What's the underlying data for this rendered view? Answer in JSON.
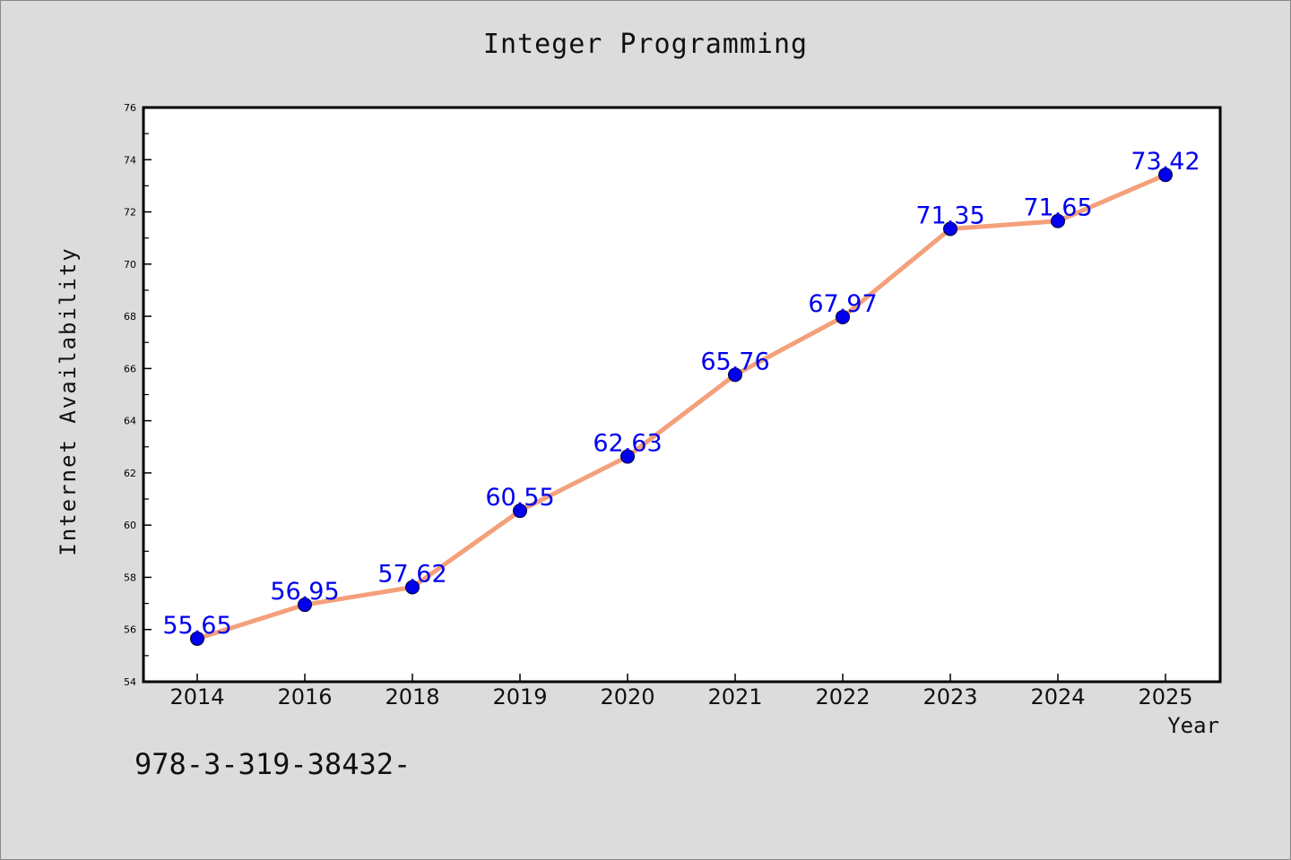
{
  "chart_data": {
    "type": "line",
    "title": "Integer Programming",
    "xlabel": "Year",
    "ylabel": "Internet Availability",
    "categories": [
      "2014",
      "2016",
      "2018",
      "2019",
      "2020",
      "2021",
      "2022",
      "2023",
      "2024",
      "2025"
    ],
    "values": [
      55.65,
      56.95,
      57.62,
      60.55,
      62.63,
      65.76,
      67.97,
      71.35,
      71.65,
      73.42
    ],
    "ylim": [
      54,
      76
    ],
    "yticks": [
      54,
      56,
      58,
      60,
      62,
      64,
      66,
      68,
      70,
      72,
      74,
      76
    ],
    "grid": false,
    "data_labels": true,
    "line_color": "#f4a07a",
    "marker_color": "#0000ee",
    "label_color": "#0000ee"
  },
  "footnote": "978-3-319-38432-"
}
